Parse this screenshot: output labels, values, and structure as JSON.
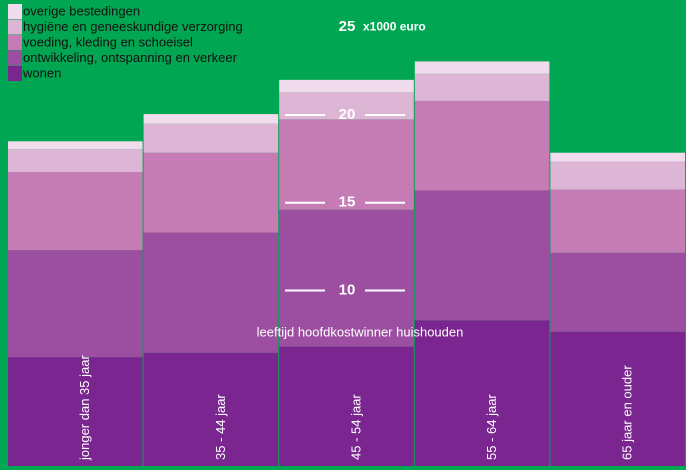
{
  "chart_data": {
    "type": "stacked_bar",
    "x_label": "leeftijd hoofdkostwinner huishouden",
    "y_unit": "x1000 euro",
    "categories": [
      "jonger dan 35 jaar",
      "35 - 44 jaar",
      "45 - 54 jaar",
      "55 - 64 jaar",
      "65 jaar en ouder"
    ],
    "series": [
      {
        "name": "wonen",
        "color": "#7b2690",
        "values": [
          6.2,
          6.45,
          6.8,
          8.3,
          7.65
        ]
      },
      {
        "name": "ontwikkeling, ontspanning en verkeer",
        "color": "#9c4fa0",
        "values": [
          6.1,
          6.85,
          7.8,
          7.4,
          4.5
        ]
      },
      {
        "name": "voeding, kleding en schoeisel",
        "color": "#c57bb4",
        "values": [
          4.45,
          4.55,
          5.15,
          5.1,
          3.6
        ]
      },
      {
        "name": "hygiëne en geneeskundige verzorging",
        "color": "#ddb6d6",
        "values": [
          1.3,
          1.65,
          1.55,
          1.55,
          1.6
        ]
      },
      {
        "name": "overige bestedingen",
        "color": "#f0dcec",
        "values": [
          0.45,
          0.55,
          0.7,
          0.7,
          0.5
        ]
      }
    ],
    "ylim": [
      0,
      26.55
    ],
    "yticks": [
      10,
      15,
      20,
      25
    ],
    "background": "#00a651"
  }
}
